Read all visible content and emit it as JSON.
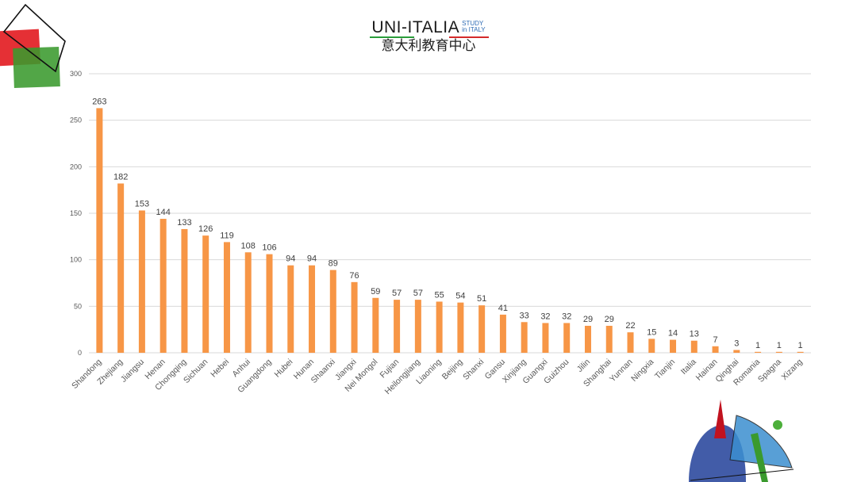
{
  "logo": {
    "main": "UNI-ITALIA",
    "study_line1": "STUDY",
    "study_line2": "in ITALY",
    "chinese": "意大利教育中心"
  },
  "colors": {
    "bar": "#F79646",
    "grid": "#d9d9d9",
    "axis_text": "#595959",
    "label_text": "#404040",
    "logo_green": "#2a9d3a",
    "logo_red": "#d42a2a"
  },
  "chart_data": {
    "type": "bar",
    "categories": [
      "Shandong",
      "Zhejiang",
      "Jiangsu",
      "Henan",
      "Chongqing",
      "Sichuan",
      "Hebei",
      "Anhui",
      "Guangdong",
      "Hubei",
      "Hunan",
      "Shaanxi",
      "Jiangxi",
      "Nei Mongol",
      "Fujian",
      "Heilongjiang",
      "Liaoning",
      "Beijing",
      "Shanxi",
      "Gansu",
      "Xinjiang",
      "Guangxi",
      "Guizhou",
      "Jilin",
      "Shanghai",
      "Yunnan",
      "Ningxia",
      "Tianjin",
      "Italia",
      "Hainan",
      "Qinghai",
      "Romania",
      "Spagna",
      "Xizang"
    ],
    "values": [
      263,
      182,
      153,
      144,
      133,
      126,
      119,
      108,
      106,
      94,
      94,
      89,
      76,
      59,
      57,
      57,
      55,
      54,
      51,
      41,
      33,
      32,
      32,
      29,
      29,
      22,
      15,
      14,
      13,
      7,
      3,
      1,
      1,
      1
    ],
    "title": "",
    "xlabel": "",
    "ylabel": "",
    "ylim": [
      0,
      300
    ],
    "yticks": [
      0,
      50,
      100,
      150,
      200,
      250,
      300
    ],
    "grid": true,
    "data_labels": true,
    "legend": "none"
  }
}
